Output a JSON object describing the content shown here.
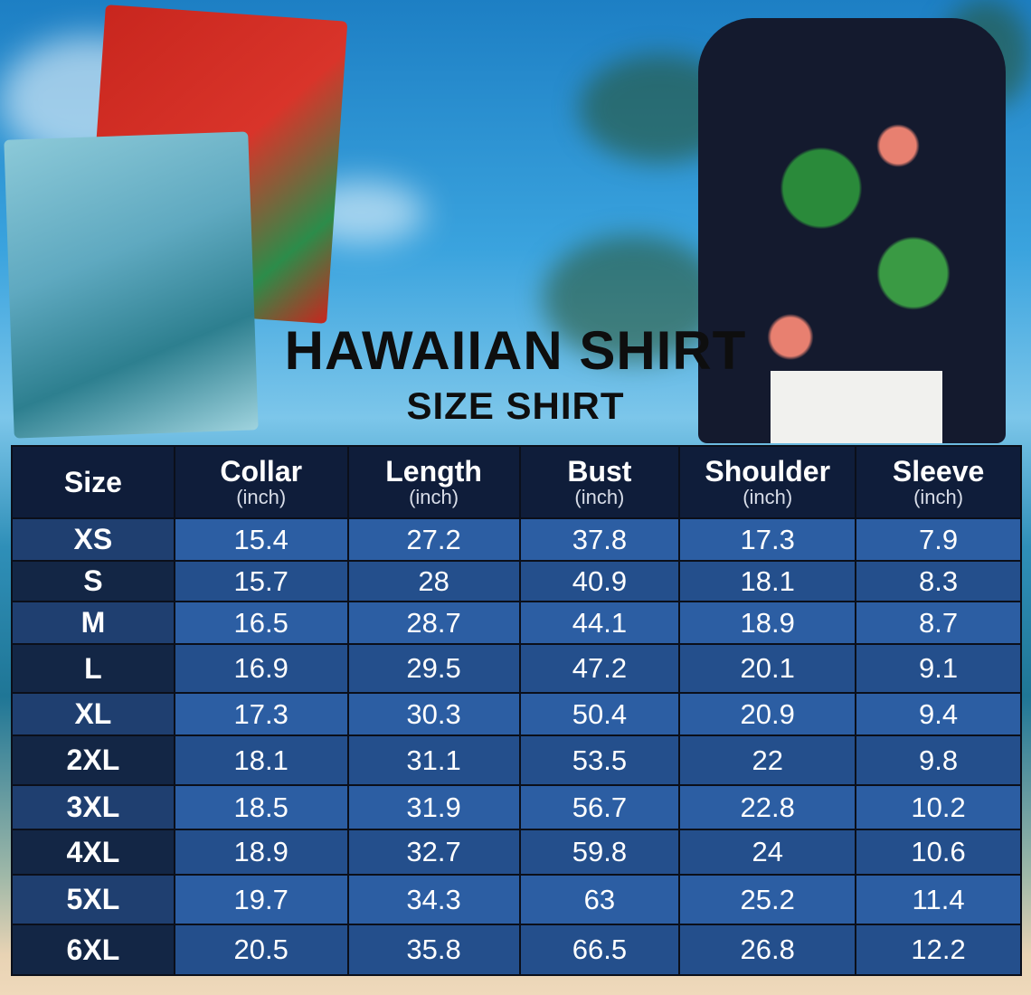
{
  "title": "HAWAIIAN SHIRT",
  "subtitle": "SIZE SHIRT",
  "table": {
    "columns": [
      {
        "label": "Size",
        "unit": ""
      },
      {
        "label": "Collar",
        "unit": "(inch)"
      },
      {
        "label": "Length",
        "unit": "(inch)"
      },
      {
        "label": "Bust",
        "unit": "(inch)"
      },
      {
        "label": "Shoulder",
        "unit": "(inch)"
      },
      {
        "label": "Sleeve",
        "unit": "(inch)"
      }
    ],
    "rows": [
      [
        "XS",
        "15.4",
        "27.2",
        "37.8",
        "17.3",
        "7.9"
      ],
      [
        "S",
        "15.7",
        "28",
        "40.9",
        "18.1",
        "8.3"
      ],
      [
        "M",
        "16.5",
        "28.7",
        "44.1",
        "18.9",
        "8.7"
      ],
      [
        "L",
        "16.9",
        "29.5",
        "47.2",
        "20.1",
        "9.1"
      ],
      [
        "XL",
        "17.3",
        "30.3",
        "50.4",
        "20.9",
        "9.4"
      ],
      [
        "2XL",
        "18.1",
        "31.1",
        "53.5",
        "22",
        "9.8"
      ],
      [
        "3XL",
        "18.5",
        "31.9",
        "56.7",
        "22.8",
        "10.2"
      ],
      [
        "4XL",
        "18.9",
        "32.7",
        "59.8",
        "24",
        "10.6"
      ],
      [
        "5XL",
        "19.7",
        "34.3",
        "63",
        "25.2",
        "11.4"
      ],
      [
        "6XL",
        "20.5",
        "35.8",
        "66.5",
        "26.8",
        "12.2"
      ]
    ]
  },
  "colors": {
    "header": "#0f1d3a",
    "row_light": "#2c5ea3",
    "row_dark": "#244f8c"
  }
}
